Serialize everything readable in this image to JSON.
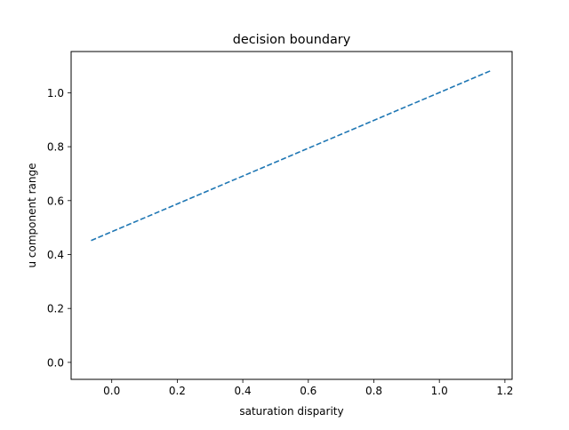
{
  "chart_data": {
    "type": "line",
    "title": "decision boundary",
    "xlabel": "saturation disparity",
    "ylabel": "u component range",
    "xlim": [
      -0.124,
      1.222
    ],
    "ylim": [
      -0.063,
      1.153
    ],
    "x_ticks": [
      0.0,
      0.2,
      0.4,
      0.6,
      0.8,
      1.0,
      1.2
    ],
    "x_tick_labels": [
      "0.0",
      "0.2",
      "0.4",
      "0.6",
      "0.8",
      "1.0",
      "1.2"
    ],
    "y_ticks": [
      0.0,
      0.2,
      0.4,
      0.6,
      0.8,
      1.0
    ],
    "y_tick_labels": [
      "0.0",
      "0.2",
      "0.4",
      "0.6",
      "0.8",
      "1.0"
    ],
    "grid": false,
    "series": [
      {
        "line_style": "dashed",
        "color": "#1f77b4",
        "x": [
          -0.063,
          1.161
        ],
        "y": [
          0.452,
          1.084
        ]
      }
    ]
  }
}
